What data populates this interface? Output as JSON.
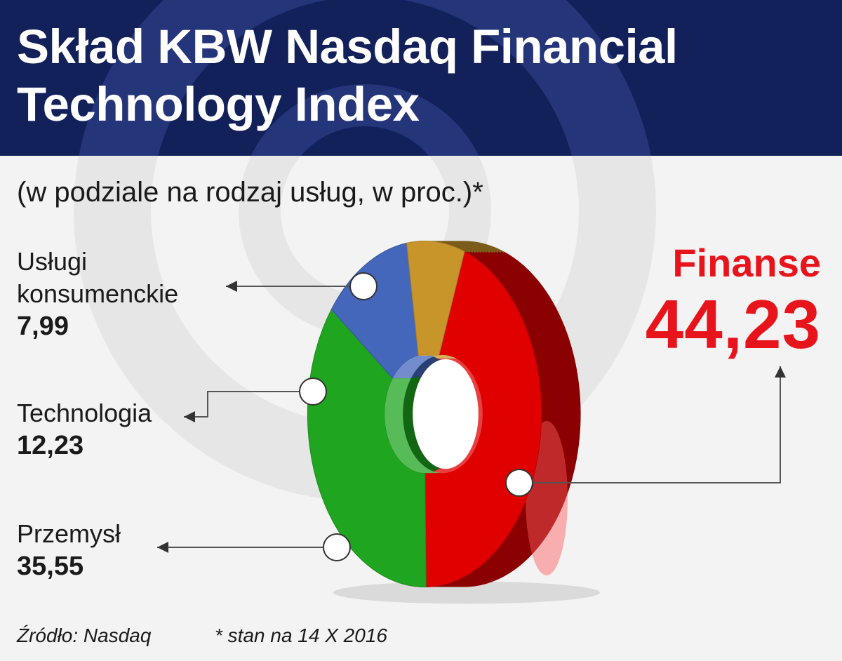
{
  "title": "Skład KBW Nasdaq Financial Technology Index",
  "subtitle": "(w podziale na rodzaj usług, w proc.)*",
  "colors": {
    "header_bg": "#13215b",
    "finanse": "#e00000",
    "przemysl": "#1fa51f",
    "technologia": "#4466bb",
    "uslugi": "#c7952a",
    "highlight_text": "#e8141c"
  },
  "chart_data": {
    "type": "pie",
    "style": "3d-donut",
    "title": "Skład KBW Nasdaq Financial Technology Index",
    "subtitle": "(w podziale na rodzaj usług, w proc.)*",
    "slices": [
      {
        "label": "Finanse",
        "value_label": "44,23",
        "value": 44.23,
        "color": "#e00000"
      },
      {
        "label": "Przemysł",
        "value_label": "35,55",
        "value": 35.55,
        "color": "#1fa51f"
      },
      {
        "label": "Technologia",
        "value_label": "12,23",
        "value": 12.23,
        "color": "#4466bb"
      },
      {
        "label": "Usługi konsumenckie",
        "value_label": "7,99",
        "value": 7.99,
        "color": "#c7952a"
      }
    ]
  },
  "footer": {
    "source": "Źródło: Nasdaq",
    "note": "* stan na 14 X 2016"
  }
}
